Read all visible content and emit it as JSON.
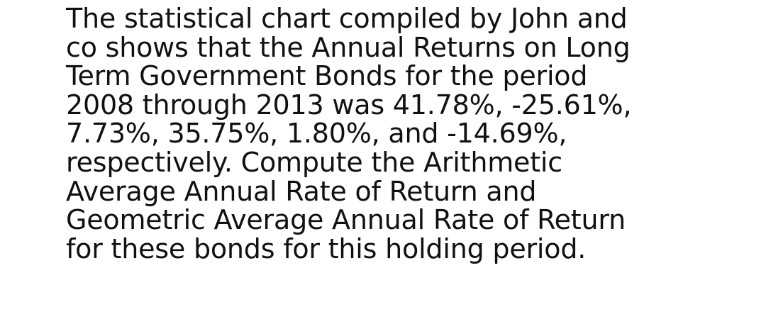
{
  "document": {
    "lines": [
      "The statistical chart compiled by John and",
      "co shows that the Annual Returns on Long",
      "Term Government Bonds for the period",
      "2008 through 2013 was 41.78%, -25.61%,",
      "7.73%, 35.75%, 1.80%, and -14.69%,",
      "respectively. Compute the Arithmetic",
      "Average Annual Rate of Return and",
      "Geometric Average Annual Rate of Return",
      "for these bonds for this holding period."
    ]
  }
}
